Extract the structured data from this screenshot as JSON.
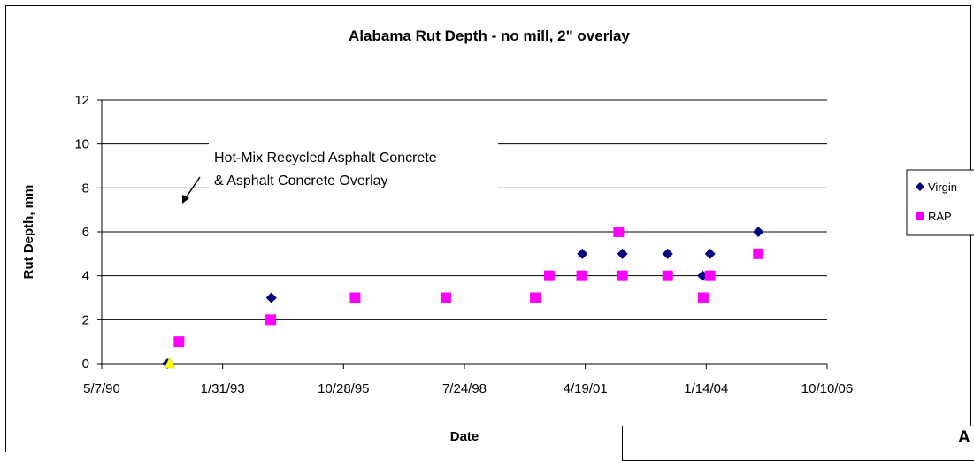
{
  "chart_data": {
    "type": "scatter",
    "title": "Alabama Rut Depth - no mill, 2\" overlay",
    "xlabel": "Date",
    "ylabel": "Rut Depth, mm",
    "x_is_date": true,
    "xlim": [
      "1990-05-07",
      "2006-10-10"
    ],
    "ylim": [
      0,
      12
    ],
    "x_ticks": [
      "5/7/90",
      "1/31/93",
      "10/28/95",
      "7/24/98",
      "4/19/01",
      "1/14/04",
      "10/10/06"
    ],
    "y_ticks": [
      0,
      2,
      4,
      6,
      8,
      10,
      12
    ],
    "grid": "horizontal",
    "legend_position": "right",
    "annotation": [
      "Hot-Mix Recycled Asphalt Concrete",
      "& Asphalt Concrete Overlay"
    ],
    "series": [
      {
        "name": "Virgin",
        "marker": "diamond",
        "color": "#000080",
        "points": [
          {
            "x": "1991-11-01",
            "y": 0
          },
          {
            "x": "1994-03-10",
            "y": 3
          },
          {
            "x": "2001-03-25",
            "y": 5
          },
          {
            "x": "2002-02-20",
            "y": 5
          },
          {
            "x": "2003-03-01",
            "y": 5
          },
          {
            "x": "2003-12-15",
            "y": 4
          },
          {
            "x": "2004-02-15",
            "y": 5
          },
          {
            "x": "2005-03-20",
            "y": 6
          }
        ]
      },
      {
        "name": "RAP",
        "marker": "square",
        "color": "#ff00ff",
        "points": [
          {
            "x": "1992-02-05",
            "y": 1
          },
          {
            "x": "1994-03-05",
            "y": 2
          },
          {
            "x": "1996-02-01",
            "y": 3
          },
          {
            "x": "1998-02-20",
            "y": 3
          },
          {
            "x": "2000-03-01",
            "y": 3
          },
          {
            "x": "2000-06-25",
            "y": 4
          },
          {
            "x": "2001-03-20",
            "y": 4
          },
          {
            "x": "2002-01-20",
            "y": 6
          },
          {
            "x": "2002-02-20",
            "y": 4
          },
          {
            "x": "2003-03-01",
            "y": 4
          },
          {
            "x": "2003-12-20",
            "y": 3
          },
          {
            "x": "2004-02-15",
            "y": 4
          },
          {
            "x": "2005-03-20",
            "y": 5
          }
        ]
      },
      {
        "marker": "triangle",
        "color": "#ffff00",
        "points": [
          {
            "x": "1991-11-20",
            "y": 0
          }
        ]
      }
    ]
  },
  "overlap_fragment": "A"
}
